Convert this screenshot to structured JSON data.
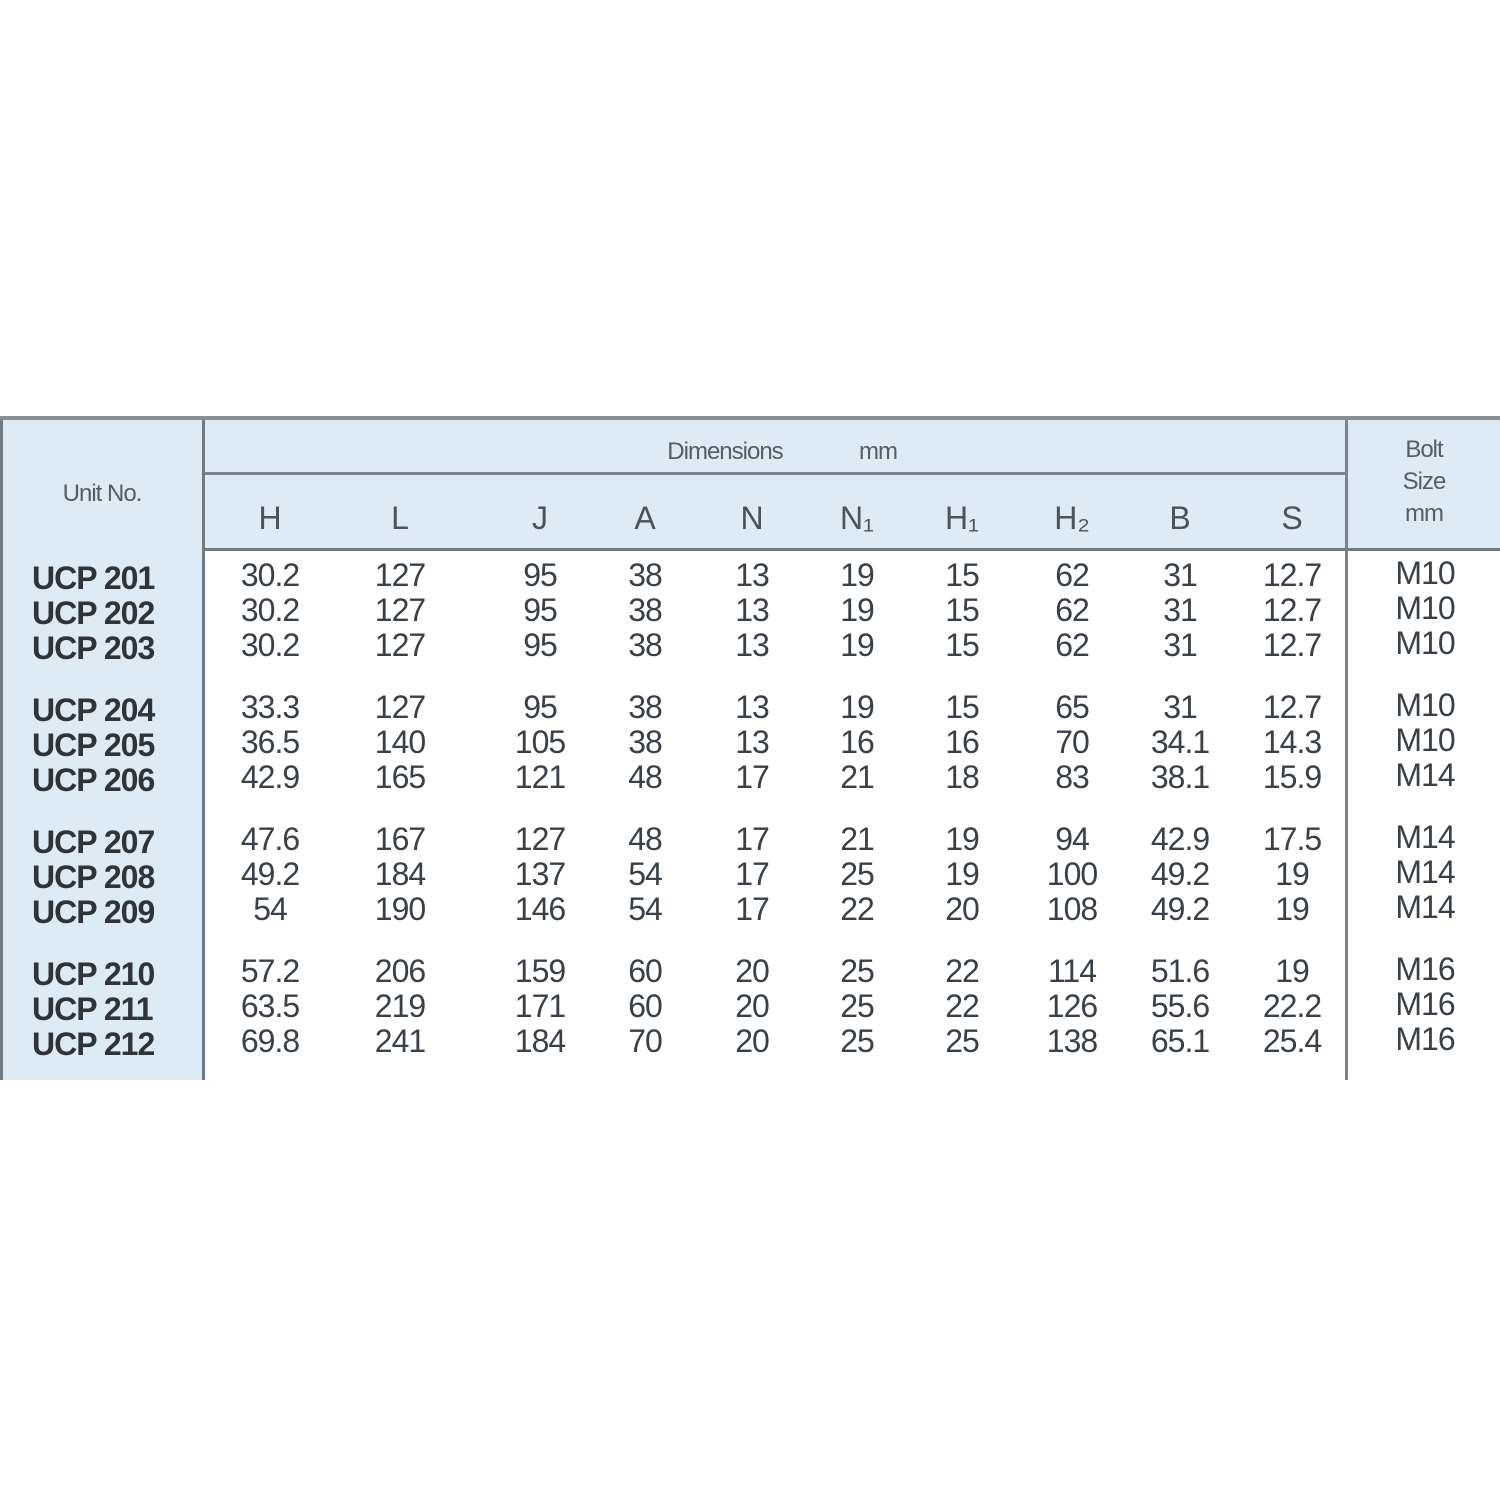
{
  "header": {
    "unit_no": "Unit  No.",
    "dimensions": "Dimensions",
    "dimensions_unit": "mm",
    "bolt_size": [
      "Bolt",
      "Size",
      "mm"
    ],
    "columns": [
      "H",
      "L",
      "J",
      "A",
      "N",
      "N₁",
      "H₁",
      "H₂",
      "B",
      "S"
    ]
  },
  "colors": {
    "header_bg": "#dcebf6",
    "text": "#3a4048",
    "rule": "#7a8490"
  },
  "rows": [
    {
      "unit": "UCP 201",
      "values": [
        "30.2",
        "127",
        "95",
        "38",
        "13",
        "19",
        "15",
        "62",
        "31",
        "12.7"
      ],
      "bolt": "M10"
    },
    {
      "unit": "UCP 202",
      "values": [
        "30.2",
        "127",
        "95",
        "38",
        "13",
        "19",
        "15",
        "62",
        "31",
        "12.7"
      ],
      "bolt": "M10"
    },
    {
      "unit": "UCP 203",
      "values": [
        "30.2",
        "127",
        "95",
        "38",
        "13",
        "19",
        "15",
        "62",
        "31",
        "12.7"
      ],
      "bolt": "M10"
    },
    {
      "unit": "UCP 204",
      "values": [
        "33.3",
        "127",
        "95",
        "38",
        "13",
        "19",
        "15",
        "65",
        "31",
        "12.7"
      ],
      "bolt": "M10"
    },
    {
      "unit": "UCP 205",
      "values": [
        "36.5",
        "140",
        "105",
        "38",
        "13",
        "16",
        "16",
        "70",
        "34.1",
        "14.3"
      ],
      "bolt": "M10"
    },
    {
      "unit": "UCP 206",
      "values": [
        "42.9",
        "165",
        "121",
        "48",
        "17",
        "21",
        "18",
        "83",
        "38.1",
        "15.9"
      ],
      "bolt": "M14"
    },
    {
      "unit": "UCP 207",
      "values": [
        "47.6",
        "167",
        "127",
        "48",
        "17",
        "21",
        "19",
        "94",
        "42.9",
        "17.5"
      ],
      "bolt": "M14"
    },
    {
      "unit": "UCP 208",
      "values": [
        "49.2",
        "184",
        "137",
        "54",
        "17",
        "25",
        "19",
        "100",
        "49.2",
        "19"
      ],
      "bolt": "M14"
    },
    {
      "unit": "UCP 209",
      "values": [
        "54",
        "190",
        "146",
        "54",
        "17",
        "22",
        "20",
        "108",
        "49.2",
        "19"
      ],
      "bolt": "M14"
    },
    {
      "unit": "UCP 210",
      "values": [
        "57.2",
        "206",
        "159",
        "60",
        "20",
        "25",
        "22",
        "114",
        "51.6",
        "19"
      ],
      "bolt": "M16"
    },
    {
      "unit": "UCP 211",
      "values": [
        "63.5",
        "219",
        "171",
        "60",
        "20",
        "25",
        "22",
        "126",
        "55.6",
        "22.2"
      ],
      "bolt": "M16"
    },
    {
      "unit": "UCP 212",
      "values": [
        "69.8",
        "241",
        "184",
        "70",
        "20",
        "25",
        "25",
        "138",
        "65.1",
        "25.4"
      ],
      "bolt": "M16"
    }
  ]
}
